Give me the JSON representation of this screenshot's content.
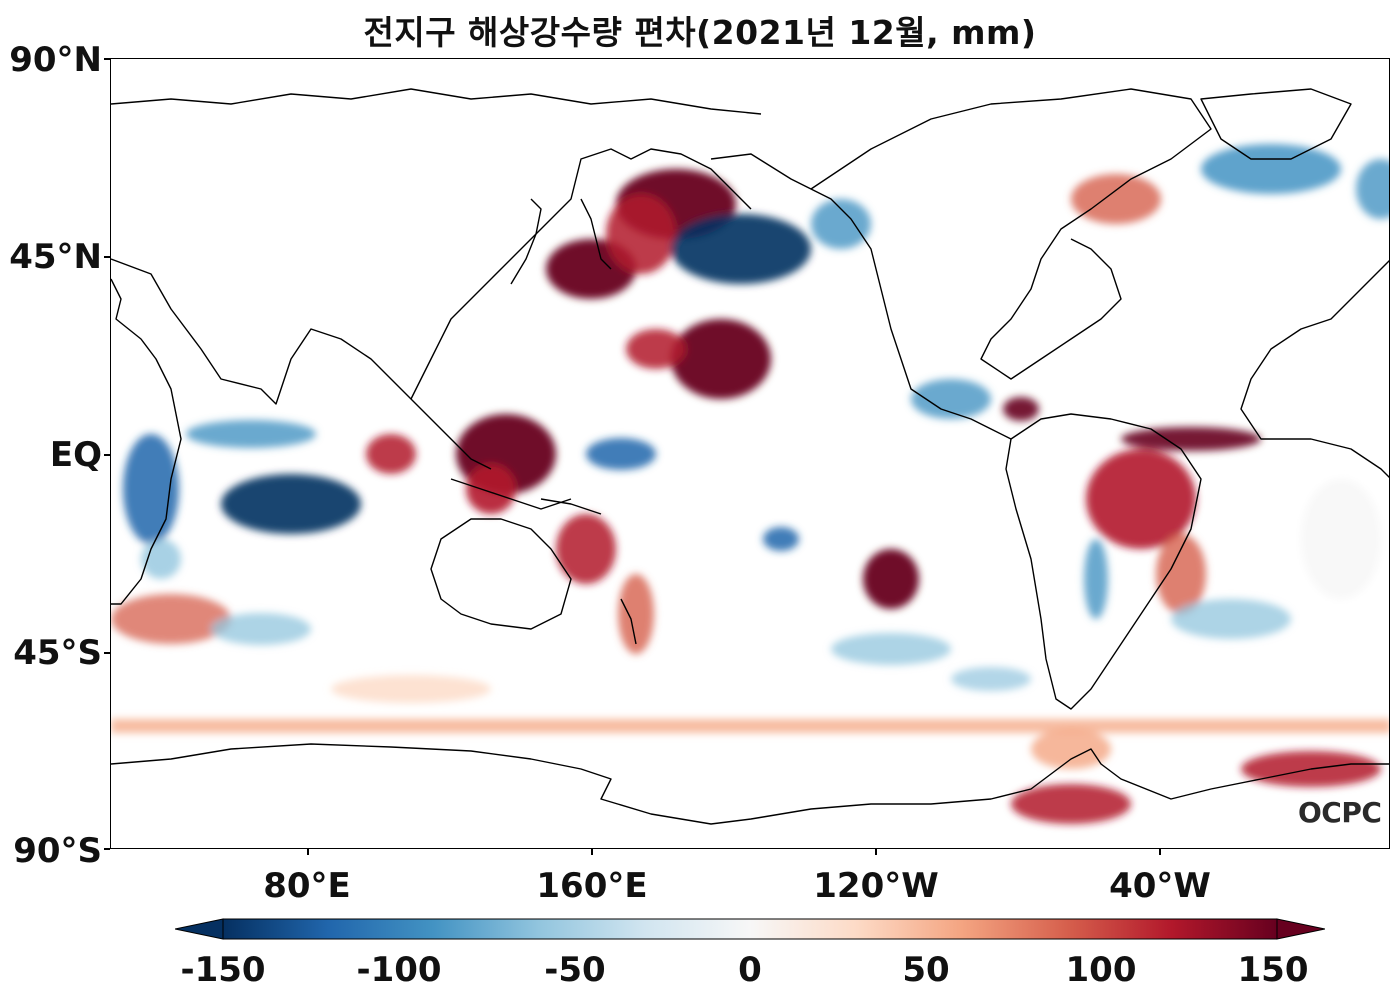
{
  "title": "전지구 해상강수량 편차(2021년 12월, mm)",
  "watermark": "OCPC",
  "axes": {
    "lat_labels": [
      "90°N",
      "45°N",
      "EQ",
      "45°S",
      "90°S"
    ],
    "lon_labels": [
      "80°E",
      "160°E",
      "120°W",
      "40°W"
    ]
  },
  "colorbar": {
    "ticks": [
      "-150",
      "-100",
      "-50",
      "0",
      "50",
      "100",
      "150"
    ],
    "min": -150,
    "max": 150,
    "extend": "both",
    "colormap": [
      "#053061",
      "#2166ac",
      "#4393c3",
      "#92c5de",
      "#d1e5f0",
      "#f7f7f7",
      "#fddbc7",
      "#f4a582",
      "#d6604d",
      "#b2182b",
      "#67001f"
    ]
  },
  "colors": {
    "strong_wet": "#67001f",
    "wet": "#d6604d",
    "dry": "#4393c3",
    "strong_dry": "#053061",
    "coastline": "#000000"
  }
}
